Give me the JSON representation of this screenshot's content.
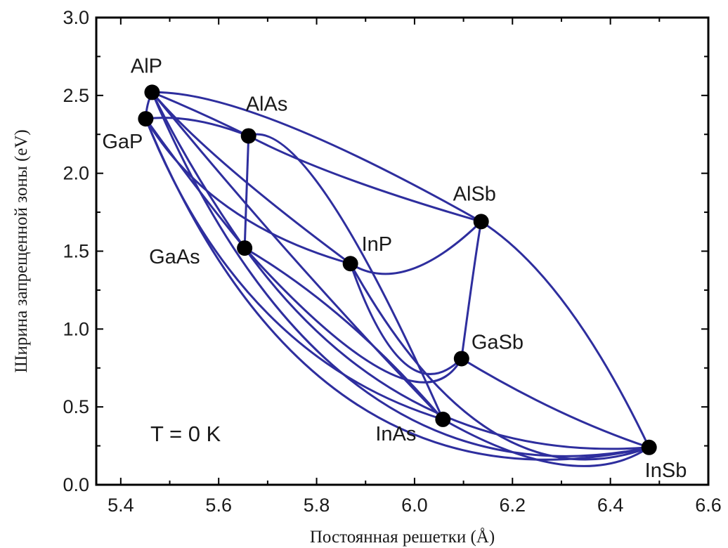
{
  "chart_data": {
    "type": "scatter",
    "title": "",
    "xlabel": "Постоянная решетки (Å)",
    "ylabel": "Ширина запрещенной зоны  (eV)",
    "xlim": [
      5.35,
      6.6
    ],
    "ylim": [
      0.0,
      3.0
    ],
    "x_ticks": [
      "5.4",
      "5.6",
      "5.8",
      "6.0",
      "6.2",
      "6.4",
      "6.6"
    ],
    "y_ticks": [
      "0.0",
      "0.5",
      "1.0",
      "1.5",
      "2.0",
      "2.5",
      "3.0"
    ],
    "annotation": "T = 0 K",
    "grid": false,
    "line_color": "#2e2e9e",
    "point_color": "#000000",
    "points": [
      {
        "name": "AlP",
        "x": 5.464,
        "y": 2.52
      },
      {
        "name": "GaP",
        "x": 5.451,
        "y": 2.35
      },
      {
        "name": "AlAs",
        "x": 5.661,
        "y": 2.24
      },
      {
        "name": "GaAs",
        "x": 5.653,
        "y": 1.52
      },
      {
        "name": "InP",
        "x": 5.869,
        "y": 1.42
      },
      {
        "name": "AlSb",
        "x": 6.136,
        "y": 1.69
      },
      {
        "name": "GaSb",
        "x": 6.096,
        "y": 0.81
      },
      {
        "name": "InAs",
        "x": 6.058,
        "y": 0.42
      },
      {
        "name": "InSb",
        "x": 6.479,
        "y": 0.24
      }
    ],
    "curves": [
      {
        "name": "AlP–GaP",
        "from": "AlP",
        "to": "GaP",
        "mid": [
          5.455,
          2.44
        ]
      },
      {
        "name": "AlP–AlAs",
        "from": "AlP",
        "to": "AlAs",
        "mid": [
          5.56,
          2.39
        ]
      },
      {
        "name": "AlP–AlSb",
        "from": "AlP",
        "to": "AlSb",
        "mid": [
          5.73,
          2.32
        ]
      },
      {
        "name": "AlP–InP",
        "from": "AlP",
        "to": "InP",
        "mid": [
          5.62,
          2.04
        ]
      },
      {
        "name": "AlP–GaAs",
        "from": "AlP",
        "to": "GaAs",
        "mid": [
          5.55,
          2.02
        ]
      },
      {
        "name": "AlP–InAs",
        "from": "AlP",
        "to": "InAs",
        "mid": [
          5.76,
          1.43
        ]
      },
      {
        "name": "GaP–AlAs",
        "from": "GaP",
        "to": "AlAs",
        "mid": [
          5.55,
          2.34
        ]
      },
      {
        "name": "GaP–GaAs",
        "from": "GaP",
        "to": "GaAs",
        "mid": [
          5.55,
          1.93
        ]
      },
      {
        "name": "GaP–InP",
        "from": "GaP",
        "to": "InP",
        "mid": [
          5.62,
          1.78
        ]
      },
      {
        "name": "GaP–InAs",
        "from": "GaP",
        "to": "InAs",
        "mid": [
          5.7,
          1.1
        ]
      },
      {
        "name": "AlAs–GaAs",
        "from": "AlAs",
        "to": "GaAs",
        "mid": [
          5.657,
          1.88
        ]
      },
      {
        "name": "AlAs–AlSb",
        "from": "AlAs",
        "to": "AlSb",
        "mid": [
          5.86,
          1.97
        ]
      },
      {
        "name": "AlAs–InAs",
        "from": "AlAs",
        "to": "InAs",
        "mid": [
          5.82,
          1.86
        ]
      },
      {
        "name": "AlSb–InP",
        "from": "AlSb",
        "to": "InP",
        "mid": [
          5.99,
          1.38
        ]
      },
      {
        "name": "AlSb–GaSb",
        "from": "AlSb",
        "to": "GaSb",
        "mid": [
          6.12,
          1.36
        ]
      },
      {
        "name": "AlSb–InSb",
        "from": "AlSb",
        "to": "InSb",
        "mid": [
          6.31,
          1.15
        ]
      },
      {
        "name": "GaAs–InAs",
        "from": "GaAs",
        "to": "InAs",
        "mid": [
          5.86,
          1.05
        ]
      },
      {
        "name": "GaAs–GaSb",
        "from": "GaAs",
        "to": "GaSb",
        "mid": [
          5.94,
          0.73
        ]
      },
      {
        "name": "GaAs–InSb",
        "from": "GaAs",
        "to": "InSb",
        "mid": [
          6.02,
          0.5
        ]
      },
      {
        "name": "InP–InSb",
        "from": "InP",
        "to": "InSb",
        "mid": [
          6.16,
          0.34
        ]
      },
      {
        "name": "InP–GaSb",
        "from": "InP",
        "to": "GaSb",
        "mid": [
          5.98,
          0.78
        ]
      },
      {
        "name": "GaSb–InSb",
        "from": "GaSb",
        "to": "InSb",
        "mid": [
          6.29,
          0.48
        ]
      },
      {
        "name": "InAs–InSb",
        "from": "InAs",
        "to": "InSb",
        "mid": [
          6.3,
          0.13
        ]
      },
      {
        "name": "GaP–InSb",
        "from": "GaP",
        "to": "InSb",
        "mid": [
          5.88,
          0.52
        ]
      },
      {
        "name": "AlP–InSb",
        "from": "AlP",
        "to": "InSb",
        "mid": [
          5.9,
          0.6
        ]
      }
    ]
  }
}
